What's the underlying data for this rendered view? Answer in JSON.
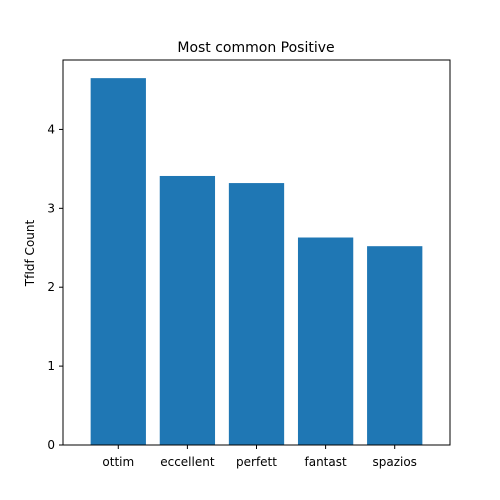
{
  "chart_data": {
    "type": "bar",
    "title": "Most common Positive",
    "xlabel": "",
    "ylabel": "TfIdf Count",
    "categories": [
      "ottim",
      "eccellent",
      "perfett",
      "fantast",
      "spazios"
    ],
    "values": [
      4.65,
      3.41,
      3.32,
      2.63,
      2.52
    ],
    "ylim": [
      0,
      4.88
    ],
    "yticks": [
      0,
      1,
      2,
      3,
      4
    ],
    "grid": false,
    "bar_color": "#1f77b4"
  }
}
